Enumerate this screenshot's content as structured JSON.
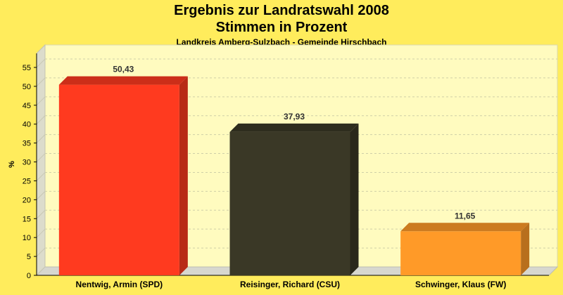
{
  "chart_data": {
    "type": "bar",
    "title": "Ergebnis zur Landratswahl 2008",
    "subtitle_line2": "Stimmen in Prozent",
    "subtitle": "Landkreis Amberg-Sulzbach - Gemeinde Hirschbach",
    "ylabel": "%",
    "xlabel": "",
    "ylim": [
      0,
      55
    ],
    "yticks": [
      0,
      5,
      10,
      15,
      20,
      25,
      30,
      35,
      40,
      45,
      50,
      55
    ],
    "categories": [
      "Nentwig, Armin (SPD)",
      "Reisinger, Richard (CSU)",
      "Schwinger, Klaus (FW)"
    ],
    "values": [
      50.43,
      37.93,
      11.65
    ],
    "value_labels": [
      "50,43",
      "37,93",
      "11,65"
    ],
    "colors": [
      "#ff3a1f",
      "#3a3826",
      "#ff9a28"
    ],
    "grid": true,
    "legend": "none"
  }
}
